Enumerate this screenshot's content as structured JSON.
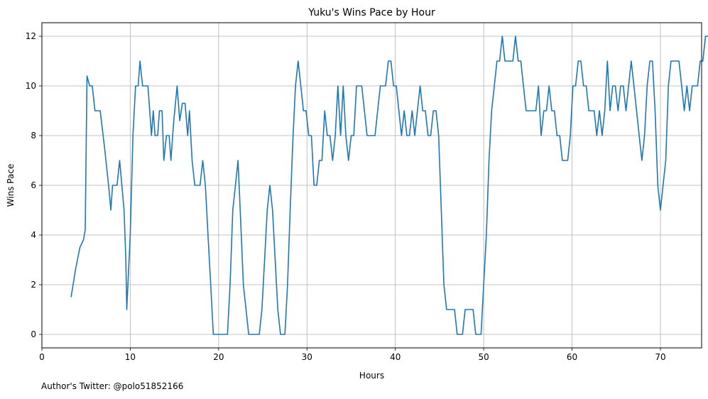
{
  "chart_data": {
    "type": "line",
    "title": "Yuku's Wins Pace by Hour",
    "xlabel": "Hours",
    "ylabel": "Wins Pace",
    "xlim": [
      0,
      75
    ],
    "ylim": [
      -0.6,
      12.6
    ],
    "xticks": [
      0,
      10,
      20,
      30,
      40,
      50,
      60,
      70
    ],
    "yticks": [
      0,
      2,
      4,
      6,
      8,
      10,
      12
    ],
    "grid": true,
    "line_color": "#1f77b4",
    "series": [
      {
        "points": [
          [
            3.3,
            1.5
          ],
          [
            3.8,
            2.6
          ],
          [
            4.3,
            3.5
          ],
          [
            4.7,
            3.8
          ],
          [
            4.9,
            4.2
          ],
          [
            5.1,
            10.4
          ],
          [
            5.4,
            10.0
          ],
          [
            5.7,
            10.0
          ],
          [
            6.0,
            9.0
          ],
          [
            6.6,
            9.0
          ],
          [
            7.1,
            7.5
          ],
          [
            7.6,
            5.8
          ],
          [
            7.8,
            5.0
          ],
          [
            8.0,
            6.0
          ],
          [
            8.5,
            6.0
          ],
          [
            8.8,
            7.0
          ],
          [
            9.3,
            5.0
          ],
          [
            9.5,
            3.0
          ],
          [
            9.6,
            1.0
          ],
          [
            10.0,
            4.0
          ],
          [
            10.3,
            8.0
          ],
          [
            10.6,
            10.0
          ],
          [
            10.9,
            10.0
          ],
          [
            11.1,
            11.0
          ],
          [
            11.4,
            10.0
          ],
          [
            12.0,
            10.0
          ],
          [
            12.4,
            8.0
          ],
          [
            12.6,
            9.0
          ],
          [
            12.8,
            8.0
          ],
          [
            13.1,
            8.0
          ],
          [
            13.3,
            9.0
          ],
          [
            13.6,
            9.0
          ],
          [
            13.8,
            7.0
          ],
          [
            14.1,
            8.0
          ],
          [
            14.4,
            8.0
          ],
          [
            14.6,
            7.0
          ],
          [
            14.9,
            8.5
          ],
          [
            15.3,
            10.0
          ],
          [
            15.6,
            8.6
          ],
          [
            15.9,
            9.3
          ],
          [
            16.2,
            9.3
          ],
          [
            16.5,
            8.0
          ],
          [
            16.7,
            9.0
          ],
          [
            17.0,
            7.0
          ],
          [
            17.3,
            6.0
          ],
          [
            17.9,
            6.0
          ],
          [
            18.2,
            7.0
          ],
          [
            18.5,
            6.0
          ],
          [
            18.8,
            4.0
          ],
          [
            19.1,
            2.0
          ],
          [
            19.4,
            0.0
          ],
          [
            21.0,
            0.0
          ],
          [
            21.3,
            2.0
          ],
          [
            21.6,
            5.0
          ],
          [
            22.2,
            7.0
          ],
          [
            22.5,
            4.5
          ],
          [
            22.8,
            2.0
          ],
          [
            23.4,
            0.0
          ],
          [
            24.6,
            0.0
          ],
          [
            24.9,
            1.0
          ],
          [
            25.2,
            3.0
          ],
          [
            25.5,
            5.0
          ],
          [
            25.8,
            6.0
          ],
          [
            26.1,
            5.0
          ],
          [
            26.7,
            1.0
          ],
          [
            27.0,
            0.0
          ],
          [
            27.5,
            0.0
          ],
          [
            27.8,
            2.0
          ],
          [
            28.1,
            5.0
          ],
          [
            28.4,
            7.8
          ],
          [
            28.7,
            10.0
          ],
          [
            29.0,
            11.0
          ],
          [
            29.3,
            10.0
          ],
          [
            29.6,
            9.0
          ],
          [
            29.9,
            9.0
          ],
          [
            30.2,
            8.0
          ],
          [
            30.5,
            8.0
          ],
          [
            30.8,
            6.0
          ],
          [
            31.1,
            6.0
          ],
          [
            31.4,
            7.0
          ],
          [
            31.7,
            7.0
          ],
          [
            32.0,
            9.0
          ],
          [
            32.3,
            8.0
          ],
          [
            32.6,
            8.0
          ],
          [
            32.9,
            7.0
          ],
          [
            33.2,
            8.0
          ],
          [
            33.5,
            10.0
          ],
          [
            33.8,
            8.0
          ],
          [
            34.1,
            10.0
          ],
          [
            34.4,
            8.0
          ],
          [
            34.7,
            7.0
          ],
          [
            35.0,
            8.0
          ],
          [
            35.3,
            8.0
          ],
          [
            35.6,
            10.0
          ],
          [
            36.2,
            10.0
          ],
          [
            36.5,
            9.0
          ],
          [
            36.8,
            8.0
          ],
          [
            37.7,
            8.0
          ],
          [
            38.0,
            9.0
          ],
          [
            38.3,
            10.0
          ],
          [
            38.9,
            10.0
          ],
          [
            39.2,
            11.0
          ],
          [
            39.5,
            11.0
          ],
          [
            39.8,
            10.0
          ],
          [
            40.1,
            10.0
          ],
          [
            40.4,
            9.0
          ],
          [
            40.7,
            8.0
          ],
          [
            41.0,
            9.0
          ],
          [
            41.3,
            8.0
          ],
          [
            41.6,
            8.0
          ],
          [
            41.9,
            9.0
          ],
          [
            42.2,
            8.0
          ],
          [
            42.5,
            9.0
          ],
          [
            42.8,
            10.0
          ],
          [
            43.1,
            9.0
          ],
          [
            43.4,
            9.0
          ],
          [
            43.7,
            8.0
          ],
          [
            44.0,
            8.0
          ],
          [
            44.3,
            9.0
          ],
          [
            44.6,
            9.0
          ],
          [
            44.9,
            8.0
          ],
          [
            45.2,
            5.0
          ],
          [
            45.5,
            2.0
          ],
          [
            45.8,
            1.0
          ],
          [
            46.7,
            1.0
          ],
          [
            47.0,
            0.0
          ],
          [
            47.6,
            0.0
          ],
          [
            47.9,
            1.0
          ],
          [
            48.8,
            1.0
          ],
          [
            49.1,
            0.0
          ],
          [
            49.7,
            0.0
          ],
          [
            50.0,
            2.0
          ],
          [
            50.3,
            4.0
          ],
          [
            50.6,
            7.0
          ],
          [
            50.9,
            9.0
          ],
          [
            51.2,
            10.0
          ],
          [
            51.5,
            11.0
          ],
          [
            51.8,
            11.0
          ],
          [
            52.1,
            12.0
          ],
          [
            52.4,
            11.0
          ],
          [
            53.3,
            11.0
          ],
          [
            53.6,
            12.0
          ],
          [
            53.9,
            11.0
          ],
          [
            54.2,
            11.0
          ],
          [
            54.5,
            10.0
          ],
          [
            54.8,
            9.0
          ],
          [
            55.9,
            9.0
          ],
          [
            56.2,
            10.0
          ],
          [
            56.5,
            8.0
          ],
          [
            56.8,
            9.0
          ],
          [
            57.1,
            9.0
          ],
          [
            57.4,
            10.0
          ],
          [
            57.7,
            9.0
          ],
          [
            58.0,
            9.0
          ],
          [
            58.3,
            8.0
          ],
          [
            58.6,
            8.0
          ],
          [
            58.9,
            7.0
          ],
          [
            59.5,
            7.0
          ],
          [
            59.8,
            8.0
          ],
          [
            60.1,
            10.0
          ],
          [
            60.4,
            10.0
          ],
          [
            60.7,
            11.0
          ],
          [
            61.0,
            11.0
          ],
          [
            61.3,
            10.0
          ],
          [
            61.6,
            10.0
          ],
          [
            61.9,
            9.0
          ],
          [
            62.2,
            9.0
          ],
          [
            62.5,
            9.0
          ],
          [
            62.8,
            8.0
          ],
          [
            63.1,
            9.0
          ],
          [
            63.4,
            8.0
          ],
          [
            63.7,
            9.0
          ],
          [
            64.0,
            11.0
          ],
          [
            64.3,
            9.0
          ],
          [
            64.6,
            10.0
          ],
          [
            64.9,
            10.0
          ],
          [
            65.2,
            9.0
          ],
          [
            65.5,
            10.0
          ],
          [
            65.8,
            10.0
          ],
          [
            66.1,
            9.0
          ],
          [
            66.4,
            10.0
          ],
          [
            66.7,
            11.0
          ],
          [
            67.0,
            10.0
          ],
          [
            67.3,
            9.0
          ],
          [
            67.6,
            8.0
          ],
          [
            67.9,
            7.0
          ],
          [
            68.2,
            8.0
          ],
          [
            68.5,
            10.0
          ],
          [
            68.8,
            11.0
          ],
          [
            69.1,
            11.0
          ],
          [
            69.4,
            9.0
          ],
          [
            69.7,
            6.0
          ],
          [
            70.0,
            5.0
          ],
          [
            70.3,
            6.0
          ],
          [
            70.6,
            7.0
          ],
          [
            70.9,
            10.0
          ],
          [
            71.2,
            11.0
          ],
          [
            72.1,
            11.0
          ],
          [
            72.4,
            10.0
          ],
          [
            72.7,
            9.0
          ],
          [
            73.0,
            10.0
          ],
          [
            73.3,
            9.0
          ],
          [
            73.6,
            10.0
          ],
          [
            74.2,
            10.0
          ],
          [
            74.5,
            11.0
          ],
          [
            74.8,
            11.0
          ],
          [
            75.1,
            12.0
          ],
          [
            77.2,
            12.0
          ]
        ]
      }
    ]
  },
  "footnote": "Author's Twitter: @polo51852166"
}
